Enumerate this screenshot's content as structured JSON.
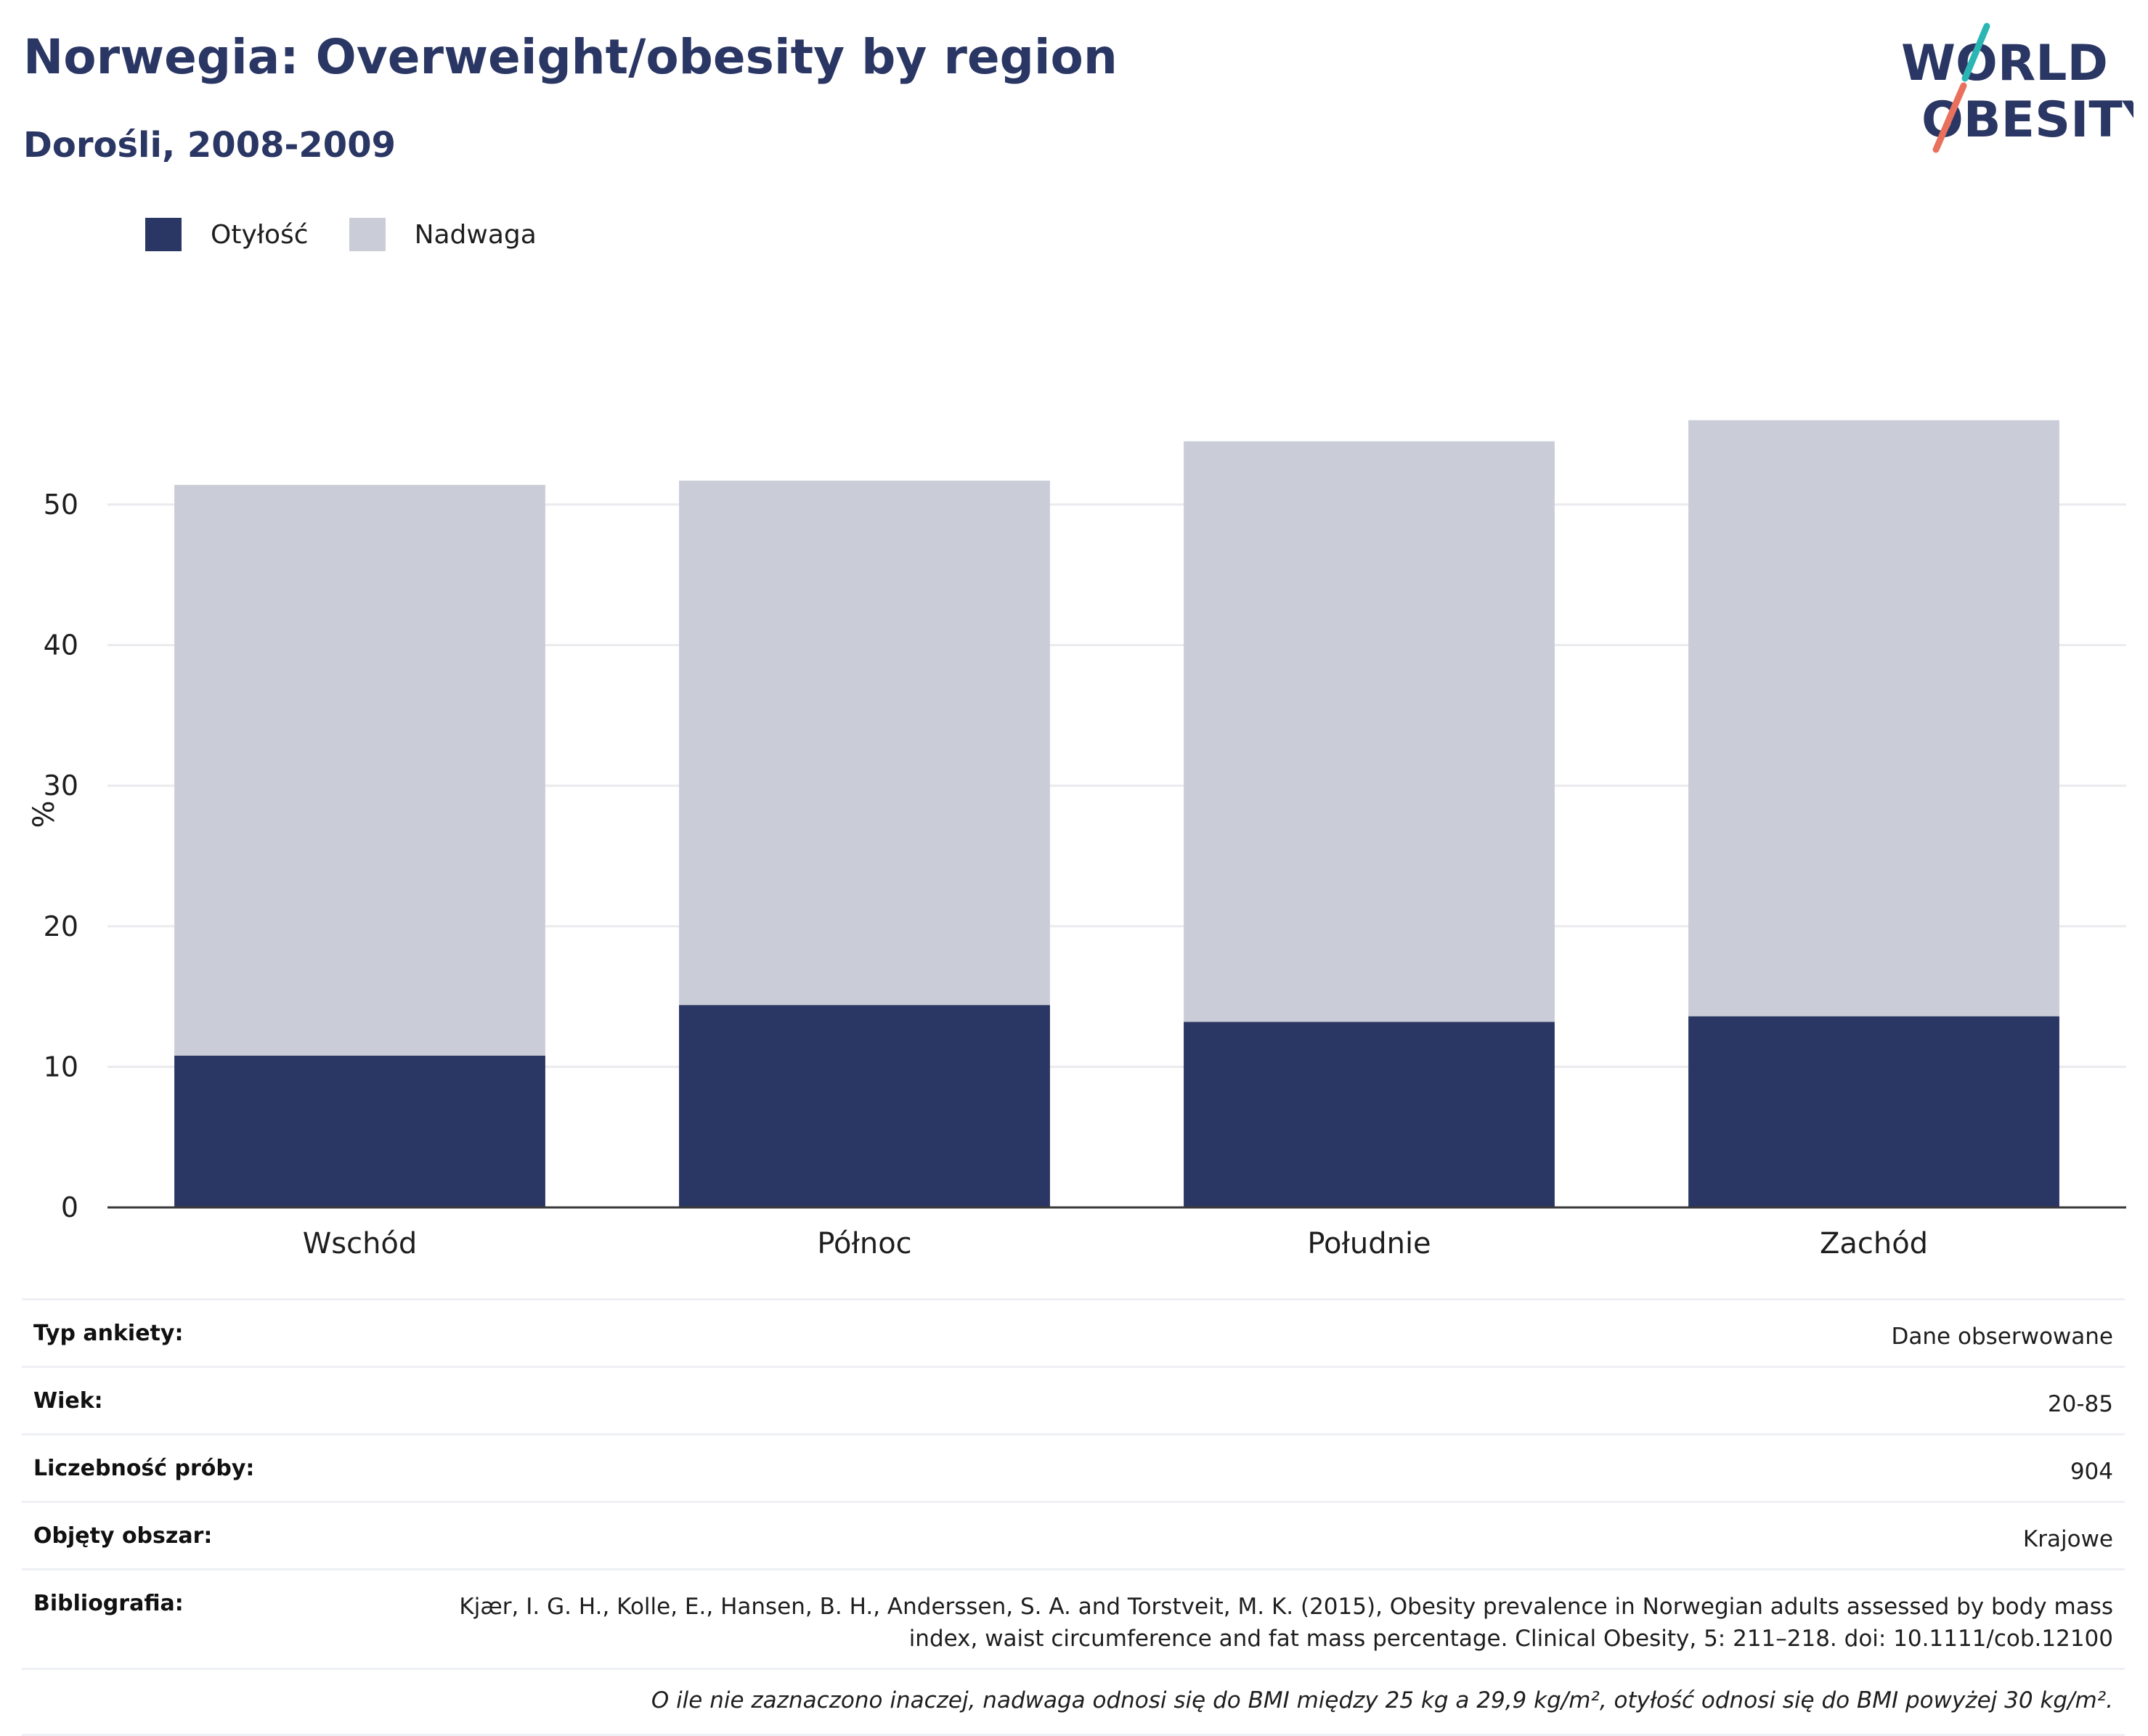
{
  "header": {
    "title": "Norwegia: Overweight/obesity by region",
    "subtitle": "Dorośli, 2008-2009"
  },
  "logo": {
    "line1": "WORLD",
    "line2": "OBESITY",
    "colors": {
      "text": "#2a3663",
      "slash_top": "#2bb5b3",
      "slash_bottom": "#e8705c"
    }
  },
  "legend": {
    "items": [
      {
        "label": "Otyłość",
        "color": "#2a3663"
      },
      {
        "label": "Nadwaga",
        "color": "#cacdd8"
      }
    ]
  },
  "chart_data": {
    "type": "bar",
    "stacked": true,
    "categories": [
      "Wschód",
      "Północ",
      "Południe",
      "Zachód"
    ],
    "series": [
      {
        "name": "Otyłość",
        "color": "#2a3663",
        "values": [
          10.8,
          14.4,
          13.2,
          13.6
        ]
      },
      {
        "name": "Nadwaga",
        "color": "#cacdd8",
        "values": [
          40.6,
          37.3,
          41.3,
          42.4
        ]
      }
    ],
    "ylabel": "%",
    "ylim": [
      0,
      58
    ],
    "yticks": [
      0,
      10,
      20,
      30,
      40,
      50
    ],
    "grid": true,
    "legend_position": "top-left"
  },
  "info": {
    "rows": [
      {
        "key": "Typ ankiety:",
        "value": "Dane obserwowane"
      },
      {
        "key": "Wiek:",
        "value": "20-85"
      },
      {
        "key": "Liczebność próby:",
        "value": "904"
      },
      {
        "key": "Objęty obszar:",
        "value": "Krajowe"
      },
      {
        "key": "Bibliografia:",
        "value": "Kjær, I. G. H., Kolle, E., Hansen, B. H., Anderssen, S. A. and Torstveit, M. K. (2015), Obesity prevalence in Norwegian adults assessed by body mass index, waist circumference and fat mass percentage. Clinical Obesity, 5: 211–218. doi: 10.1111/cob.12100"
      }
    ],
    "note": "O ile nie zaznaczono inaczej, nadwaga odnosi się do BMI między 25 kg a 29,9 kg/m², otyłość odnosi się do BMI powyżej 30 kg/m²."
  }
}
